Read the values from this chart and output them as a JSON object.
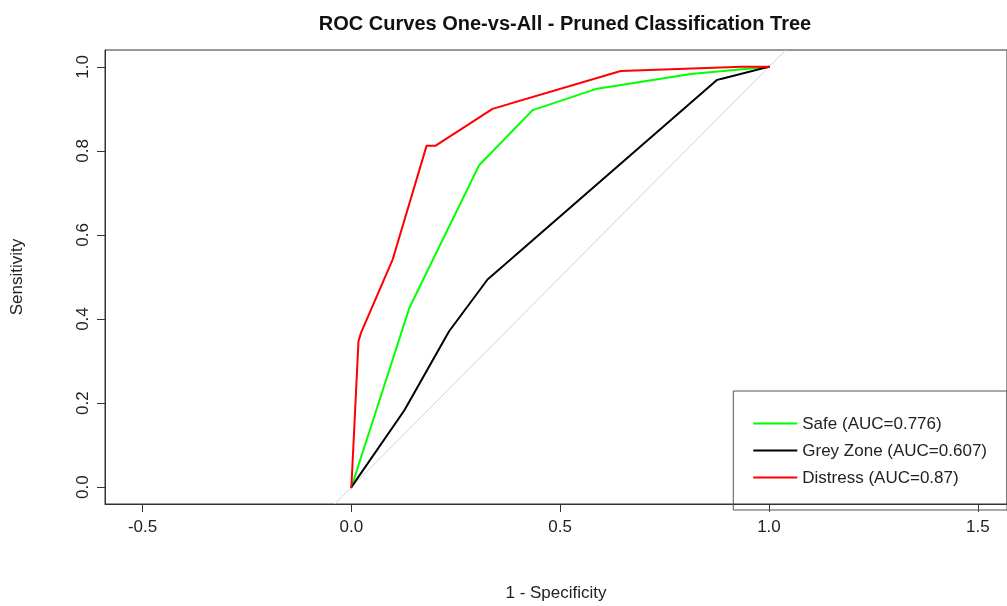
{
  "chart_data": {
    "type": "line",
    "title": "ROC Curves One-vs-All - Pruned Classification Tree",
    "xlabel": "1 - Specificity",
    "ylabel": "Sensitivity",
    "series": [
      {
        "name": "Safe (AUC=0.776)",
        "color": "#00ff00",
        "x": [
          0,
          0.139,
          0.306,
          0.434,
          0.585,
          0.813,
          1.0
        ],
        "values": [
          0,
          0.427,
          0.766,
          0.897,
          0.947,
          0.983,
          1.0
        ]
      },
      {
        "name": "Grey Zone (AUC=0.607)",
        "color": "#000000",
        "x": [
          0,
          0.127,
          0.234,
          0.326,
          0.876,
          0.892,
          1.0
        ],
        "values": [
          0,
          0.183,
          0.371,
          0.494,
          0.969,
          0.973,
          1.0
        ]
      },
      {
        "name": "Distress (AUC=0.87)",
        "color": "#ff0000",
        "x": [
          0,
          0.017,
          0.023,
          0.099,
          0.18,
          0.201,
          0.338,
          0.645,
          0.936,
          1.0
        ],
        "values": [
          0,
          0.347,
          0.367,
          0.542,
          0.812,
          0.812,
          0.9,
          0.99,
          1.0,
          1.0
        ]
      },
      {
        "color": "#d3d3d3",
        "x": [
          -0.04,
          1.04
        ],
        "values": [
          -0.04,
          1.04
        ]
      }
    ],
    "xlim": [
      -0.59,
      1.57
    ],
    "ylim": [
      -0.04,
      1.04
    ],
    "xticks": [
      {
        "value": -0.5,
        "label": "-0.5"
      },
      {
        "value": 0,
        "label": "0.0"
      },
      {
        "value": 0.5,
        "label": "0.5"
      },
      {
        "value": 1,
        "label": "1.0"
      },
      {
        "value": 1.5,
        "label": "1.5"
      }
    ],
    "yticks": [
      {
        "value": 0,
        "label": "0.0"
      },
      {
        "value": 0.2,
        "label": "0.2"
      },
      {
        "value": 0.4,
        "label": "0.4"
      },
      {
        "value": 0.6,
        "label": "0.6"
      },
      {
        "value": 0.8,
        "label": "0.8"
      },
      {
        "value": 1,
        "label": "1.0"
      }
    ],
    "grid": false,
    "legend": "bottom right",
    "marker": "none",
    "line_style": "solid"
  }
}
